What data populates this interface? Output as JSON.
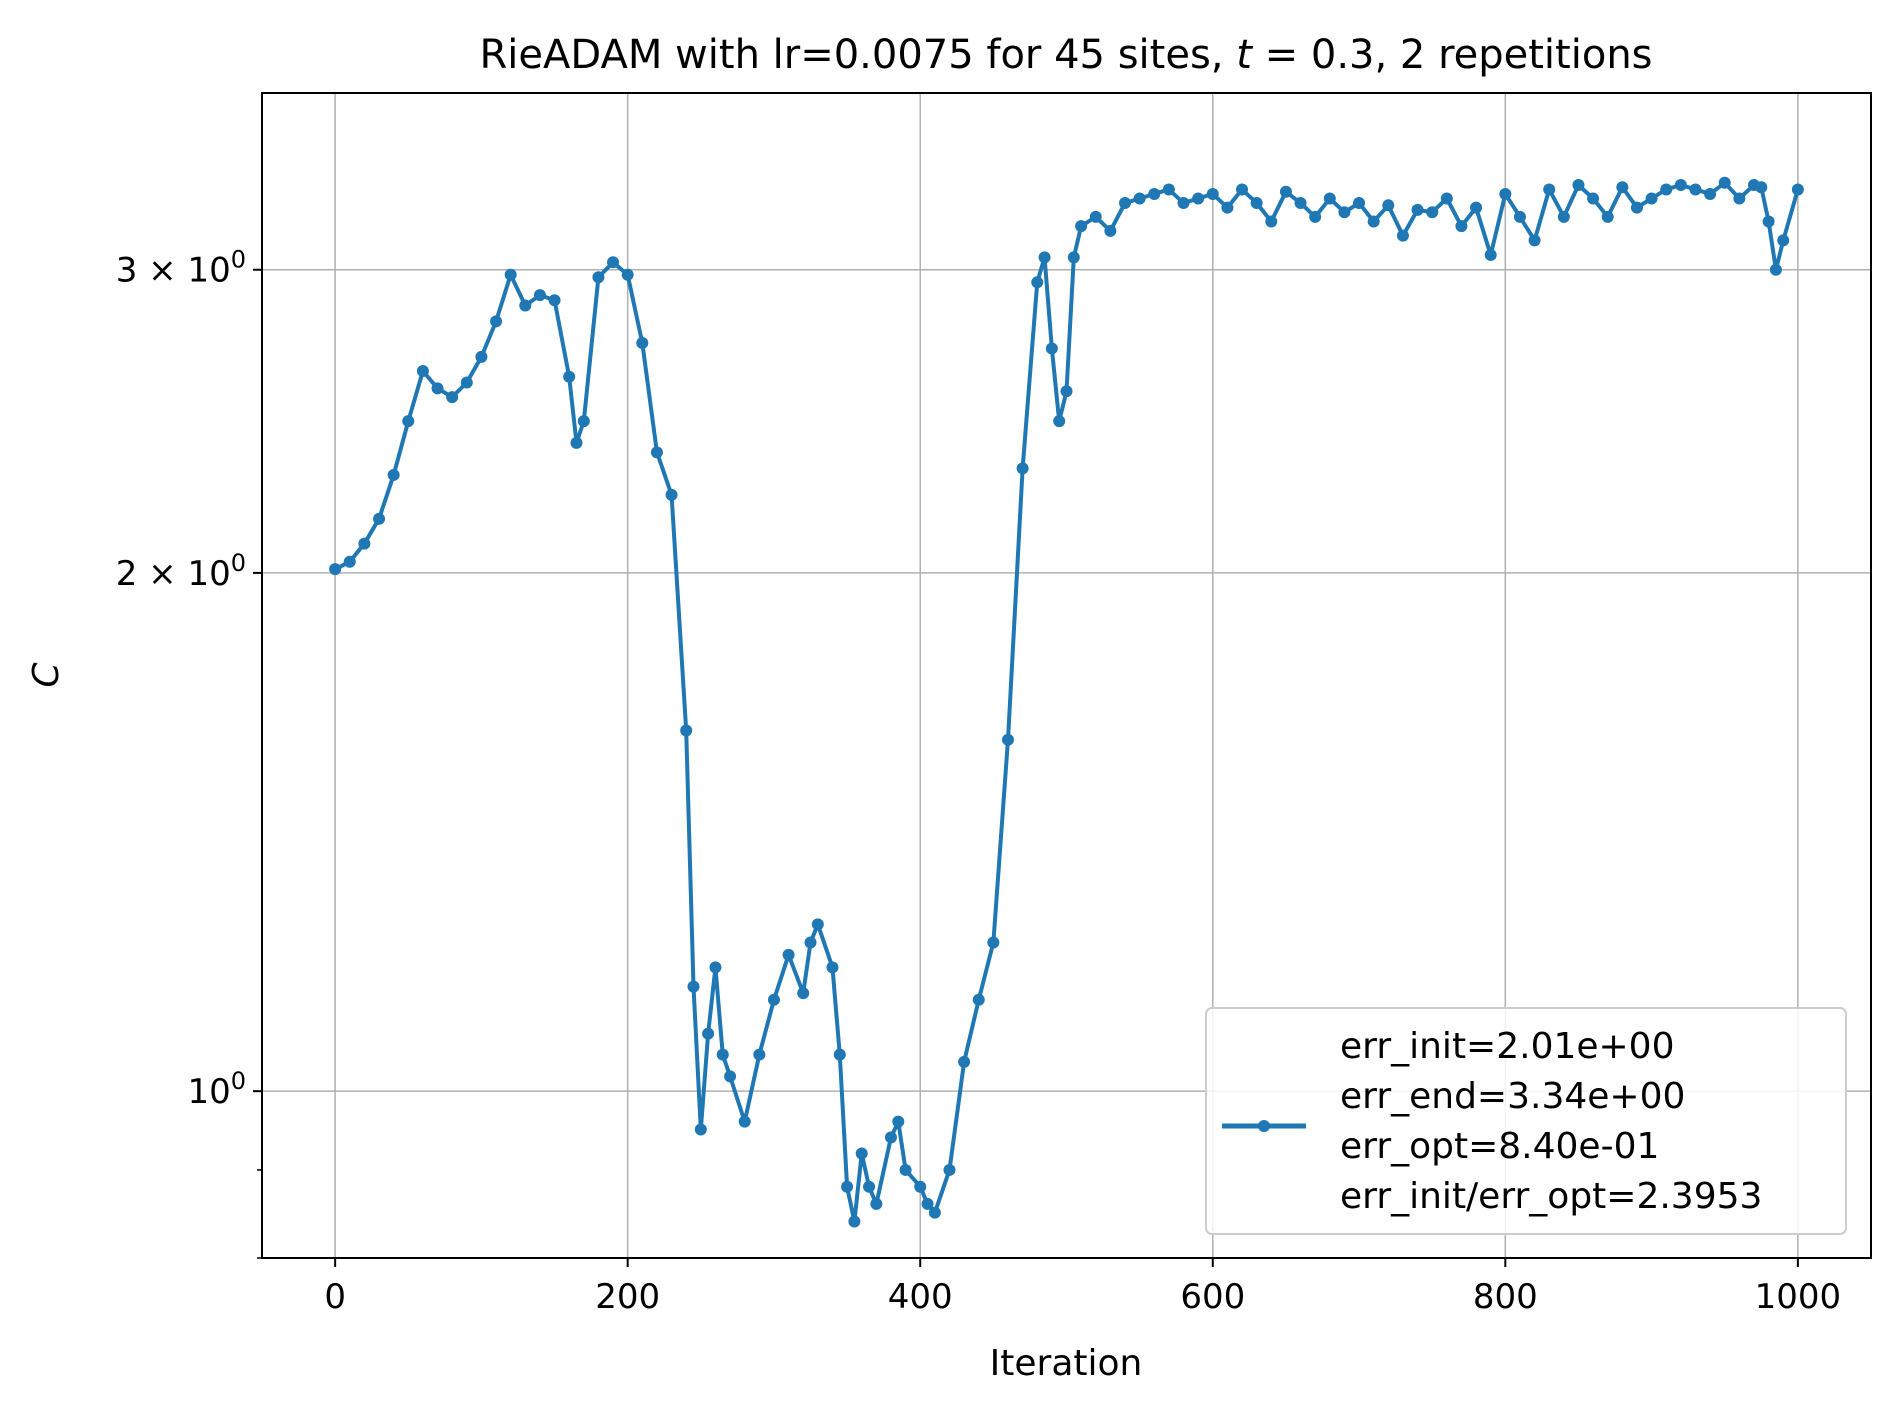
{
  "chart_data": {
    "type": "line",
    "title": "RieADAM with lr=0.0075 for 45 sites, t = 0.3, 2 repetitions",
    "title_parts": {
      "before": "RieADAM with lr=0.0075 for 45 sites, ",
      "var": "t",
      "after": " = 0.3, 2 repetitions"
    },
    "xlabel": "Iteration",
    "ylabel": "C",
    "xlim": [
      -50,
      1050
    ],
    "ylim": [
      0.8,
      3.8
    ],
    "yscale": "log",
    "grid": true,
    "legend_position": "lower-right",
    "colors": {
      "line": "#1f77b4",
      "grid": "#b0b0b0",
      "axis": "#000000",
      "legend_border": "#cccccc"
    },
    "x_ticks": [
      0,
      200,
      400,
      600,
      800,
      1000
    ],
    "x_tick_labels": [
      "0",
      "200",
      "400",
      "600",
      "800",
      "1000"
    ],
    "y_major_ticks": [
      {
        "value": 1,
        "base": "10",
        "exp": "0"
      },
      {
        "value": 2,
        "base": "2 × 10",
        "exp": "0"
      },
      {
        "value": 3,
        "base": "3 × 10",
        "exp": "0"
      }
    ],
    "y_minor_ticks": [
      0.9,
      0.8
    ],
    "legend": {
      "lines": [
        "err_init=2.01e+00",
        "err_end=3.34e+00",
        "err_opt=8.40e-01",
        "err_init/err_opt=2.3953"
      ]
    },
    "series": [
      {
        "x": [
          0,
          10,
          20,
          30,
          40,
          50,
          60,
          70,
          80,
          90,
          100,
          110,
          120,
          130,
          140,
          150,
          160,
          165,
          170,
          180,
          190,
          200,
          210,
          220,
          230,
          240,
          245,
          250,
          255,
          260,
          265,
          270,
          280,
          290,
          300,
          310,
          320,
          325,
          330,
          340,
          345,
          350,
          355,
          360,
          365,
          370,
          380,
          385,
          390,
          400,
          405,
          410,
          420,
          430,
          440,
          450,
          460,
          470,
          480,
          485,
          490,
          495,
          500,
          505,
          510,
          520,
          530,
          540,
          550,
          560,
          570,
          580,
          590,
          600,
          610,
          620,
          630,
          640,
          650,
          660,
          670,
          680,
          690,
          700,
          710,
          720,
          730,
          740,
          750,
          760,
          770,
          780,
          790,
          800,
          810,
          820,
          830,
          840,
          850,
          860,
          870,
          880,
          890,
          900,
          910,
          920,
          930,
          940,
          950,
          960,
          970,
          975,
          980,
          985,
          990,
          1000
        ],
        "y": [
          2.01,
          2.03,
          2.08,
          2.15,
          2.28,
          2.45,
          2.62,
          2.56,
          2.53,
          2.58,
          2.67,
          2.8,
          2.98,
          2.86,
          2.9,
          2.88,
          2.6,
          2.38,
          2.45,
          2.97,
          3.03,
          2.98,
          2.72,
          2.35,
          2.22,
          1.62,
          1.15,
          0.95,
          1.08,
          1.18,
          1.05,
          1.02,
          0.96,
          1.05,
          1.13,
          1.2,
          1.14,
          1.22,
          1.25,
          1.18,
          1.05,
          0.88,
          0.84,
          0.92,
          0.88,
          0.86,
          0.94,
          0.96,
          0.9,
          0.88,
          0.86,
          0.85,
          0.9,
          1.04,
          1.13,
          1.22,
          1.6,
          2.3,
          2.95,
          3.05,
          2.7,
          2.45,
          2.55,
          3.05,
          3.18,
          3.22,
          3.16,
          3.28,
          3.3,
          3.32,
          3.34,
          3.28,
          3.3,
          3.32,
          3.26,
          3.34,
          3.28,
          3.2,
          3.33,
          3.28,
          3.22,
          3.3,
          3.24,
          3.28,
          3.2,
          3.27,
          3.14,
          3.25,
          3.24,
          3.3,
          3.18,
          3.26,
          3.06,
          3.32,
          3.22,
          3.12,
          3.34,
          3.22,
          3.36,
          3.3,
          3.22,
          3.35,
          3.26,
          3.3,
          3.34,
          3.36,
          3.34,
          3.32,
          3.37,
          3.3,
          3.36,
          3.35,
          3.2,
          3.0,
          3.12,
          3.34
        ]
      }
    ]
  }
}
